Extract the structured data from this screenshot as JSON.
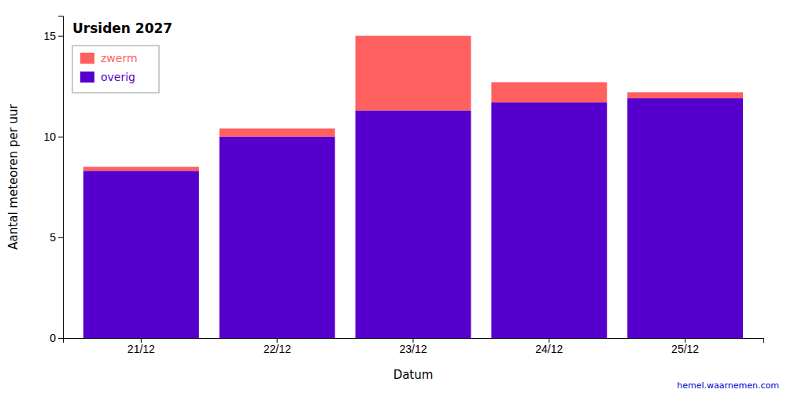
{
  "chart_data": {
    "type": "bar",
    "stacked": true,
    "title": "Ursiden 2027",
    "x_label": "Datum",
    "y_label": "Aantal meteoren per uur",
    "categories": [
      "21/12",
      "22/12",
      "23/12",
      "24/12",
      "25/12"
    ],
    "series": [
      {
        "name": "overig",
        "color": "#5500cc",
        "values": [
          8.3,
          10.0,
          11.3,
          11.7,
          11.9
        ]
      },
      {
        "name": "zwerm",
        "color": "#ff6060",
        "values": [
          0.2,
          0.4,
          3.7,
          1.0,
          0.3
        ]
      }
    ],
    "ylim": [
      0,
      16
    ],
    "yticks": [
      0,
      5,
      10,
      15
    ],
    "grid": false,
    "legend": "upper left",
    "annotations": [
      {
        "text": "hemel.waarnemen.com",
        "color": "#0000cc"
      }
    ]
  }
}
